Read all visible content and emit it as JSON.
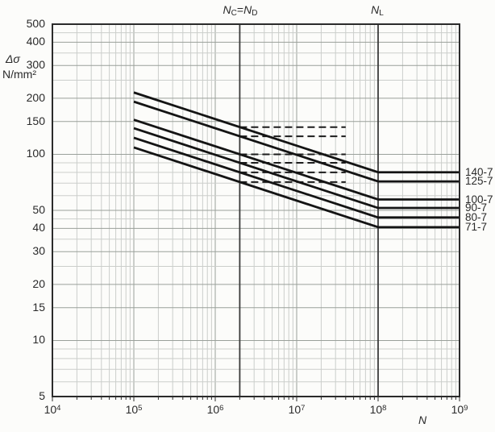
{
  "chart_data": {
    "type": "line",
    "x_axis": {
      "label": "N",
      "scale": "log",
      "min": 10000,
      "max": 1000000000,
      "tick_base": "10",
      "tick_exponents": [
        4,
        5,
        6,
        7,
        8,
        9
      ]
    },
    "y_axis": {
      "label_line1": "Δσ",
      "label_line2": "N/mm²",
      "scale": "log",
      "min": 5,
      "max": 500,
      "tick_values": [
        500,
        400,
        300,
        200,
        150,
        100,
        50,
        40,
        30,
        20,
        15,
        10,
        5
      ]
    },
    "grid": {
      "on": true,
      "minor_multipliers": [
        2,
        3,
        4,
        5,
        6,
        7,
        8,
        9
      ],
      "y_gridline_values": [
        6,
        7,
        8,
        9,
        10,
        15,
        20,
        25,
        30,
        35,
        40,
        45,
        50,
        60,
        70,
        80,
        90,
        100,
        150,
        200,
        250,
        300,
        350,
        400,
        450,
        500
      ]
    },
    "reference_lines": [
      {
        "id": "NC=ND",
        "x": 2000000,
        "parts": {
          "var1": "N",
          "sub1": "C",
          "equals": "=",
          "var2": "N",
          "sub2": "D"
        }
      },
      {
        "id": "NL",
        "x": 100000000,
        "parts": {
          "var1": "N",
          "sub1": "L"
        }
      }
    ],
    "series": [
      {
        "name": "140-7",
        "detail_category": 140,
        "inverse_slope_m": 7,
        "points": [
          [
            100000,
            214.8
          ],
          [
            100000000,
            80.1
          ],
          [
            1000000000,
            80.1
          ]
        ]
      },
      {
        "name": "125-7",
        "detail_category": 125,
        "inverse_slope_m": 7,
        "points": [
          [
            100000,
            191.8
          ],
          [
            100000000,
            71.5
          ],
          [
            1000000000,
            71.5
          ]
        ]
      },
      {
        "name": "100-7",
        "detail_category": 100,
        "inverse_slope_m": 7,
        "points": [
          [
            100000,
            153.4
          ],
          [
            100000000,
            57.2
          ],
          [
            1000000000,
            57.2
          ]
        ]
      },
      {
        "name": "90-7",
        "detail_category": 90,
        "inverse_slope_m": 7,
        "points": [
          [
            100000,
            138.1
          ],
          [
            100000000,
            51.5
          ],
          [
            1000000000,
            51.5
          ]
        ]
      },
      {
        "name": "80-7",
        "detail_category": 80,
        "inverse_slope_m": 7,
        "points": [
          [
            100000,
            122.7
          ],
          [
            100000000,
            45.8
          ],
          [
            1000000000,
            45.8
          ]
        ]
      },
      {
        "name": "71-7",
        "detail_category": 71,
        "inverse_slope_m": 7,
        "points": [
          [
            100000,
            108.9
          ],
          [
            100000000,
            40.6
          ],
          [
            1000000000,
            40.6
          ]
        ]
      }
    ],
    "dashed_limit_lines": [
      {
        "value": 140,
        "x_start": 2000000,
        "x_end": 40000000
      },
      {
        "value": 125,
        "x_start": 2000000,
        "x_end": 40000000
      },
      {
        "value": 100,
        "x_start": 2000000,
        "x_end": 40000000
      },
      {
        "value": 90,
        "x_start": 2000000,
        "x_end": 40000000
      },
      {
        "value": 80,
        "x_start": 2000000,
        "x_end": 40000000
      },
      {
        "value": 71,
        "x_start": 2000000,
        "x_end": 40000000
      }
    ],
    "colors": {
      "curve": "#141414",
      "dashed": "#1c1c1c",
      "grid_minor": "#cbcecb",
      "grid_major": "#9aa09a",
      "axis": "#2b2b2b",
      "ref_line": "#3a3a3a",
      "text": "#2a2a2a"
    }
  }
}
